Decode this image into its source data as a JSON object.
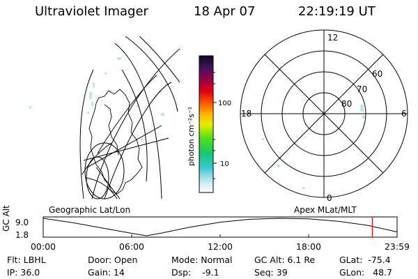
{
  "header": {
    "instrument": "Ultraviolet Imager",
    "date": "18 Apr 07",
    "time": "22:19:19 UT"
  },
  "panels": {
    "left_label": "Geographic Lat/Lon",
    "right_label": "Apex MLat/MLT"
  },
  "colorbar": {
    "unit_label": "photon cm⁻²s⁻¹",
    "ticks": [
      "100",
      "10"
    ]
  },
  "polar_plot": {
    "mlt_labels": [
      "12",
      "18",
      "6",
      "0"
    ],
    "lat_labels": [
      "60",
      "70",
      "80"
    ]
  },
  "status": {
    "filter": "Flt: LBHL",
    "ip": "IP: 36.0",
    "door": "Door: Open",
    "gain": "Gain: 14",
    "mode": "Mode: Normal",
    "dsp": "Dsp:    -9.1",
    "gc_alt": "GC Alt: 6.1 Re",
    "seq": "Seq: 39",
    "glat": "GLat:  -75.4",
    "glon": "GLon:   48.7"
  },
  "chart_data": {
    "type": "line",
    "title": "",
    "ylabel": "GC Alt",
    "yticks": [
      "9.0",
      "1.8"
    ],
    "ylim": [
      1.8,
      9.0
    ],
    "xticks": [
      "00:00",
      "06:00",
      "12:00",
      "18:00",
      "23:59"
    ],
    "x_hours": [
      0,
      2,
      4,
      6,
      7.0,
      8,
      10,
      12,
      14,
      16,
      18,
      20,
      22,
      23.98
    ],
    "series": [
      {
        "values": [
          9.0,
          7.2,
          5.0,
          2.8,
          1.8,
          2.9,
          5.4,
          7.4,
          8.6,
          9.0,
          8.8,
          7.8,
          6.1,
          3.4
        ]
      }
    ],
    "marker_hour": 22.32,
    "colors": {
      "line": "#000000",
      "marker": "#ff0000"
    }
  }
}
